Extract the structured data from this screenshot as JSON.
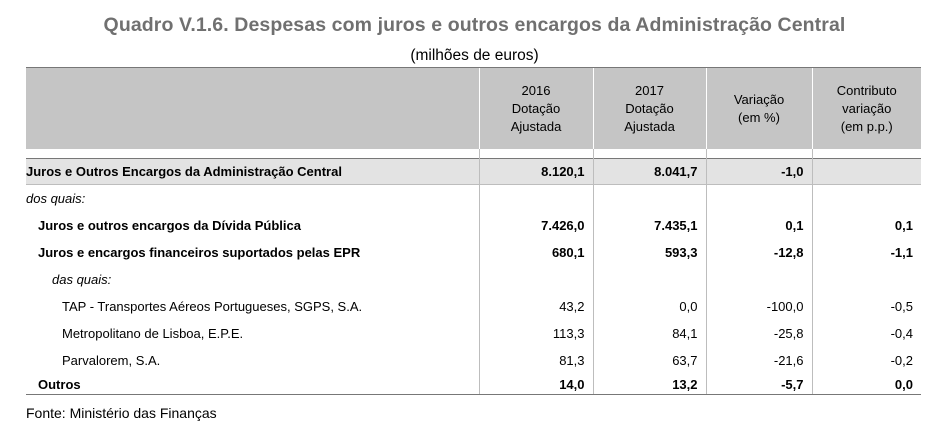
{
  "title": "Quadro V.1.6. Despesas com juros e outros encargos da Administração Central",
  "subtitle": "(milhões de euros)",
  "headers": {
    "col1": [
      "2016",
      "Dotação",
      "Ajustada"
    ],
    "col2": [
      "2017",
      "Dotação",
      "Ajustada"
    ],
    "col3": [
      "Variação",
      "(em %)"
    ],
    "col4": [
      "Contributo",
      "variação",
      "(em p.p.)"
    ]
  },
  "main_row": {
    "label": "Juros e Outros Encargos da Administração Central",
    "v2016": "8.120,1",
    "v2017": "8.041,7",
    "variacao": "-1,0",
    "contributo": ""
  },
  "rows": [
    {
      "label": "dos quais:",
      "v2016": "",
      "v2017": "",
      "variacao": "",
      "contributo": ""
    },
    {
      "label": "Juros e outros encargos da Dívida Pública",
      "v2016": "7.426,0",
      "v2017": "7.435,1",
      "variacao": "0,1",
      "contributo": "0,1"
    },
    {
      "label": "Juros e encargos financeiros suportados pelas EPR",
      "v2016": "680,1",
      "v2017": "593,3",
      "variacao": "-12,8",
      "contributo": "-1,1"
    },
    {
      "label": "das quais:",
      "v2016": "",
      "v2017": "",
      "variacao": "",
      "contributo": ""
    },
    {
      "label": "TAP - Transportes Aéreos Portugueses, SGPS, S.A.",
      "v2016": "43,2",
      "v2017": "0,0",
      "variacao": "-100,0",
      "contributo": "-0,5"
    },
    {
      "label": "Metropolitano de Lisboa, E.P.E.",
      "v2016": "113,3",
      "v2017": "84,1",
      "variacao": "-25,8",
      "contributo": "-0,4"
    },
    {
      "label": "Parvalorem, S.A.",
      "v2016": "81,3",
      "v2017": "63,7",
      "variacao": "-21,6",
      "contributo": "-0,2"
    },
    {
      "label": "Outros",
      "v2016": "14,0",
      "v2017": "13,2",
      "variacao": "-5,7",
      "contributo": "0,0"
    }
  ],
  "source": "Fonte: Ministério das Finanças"
}
